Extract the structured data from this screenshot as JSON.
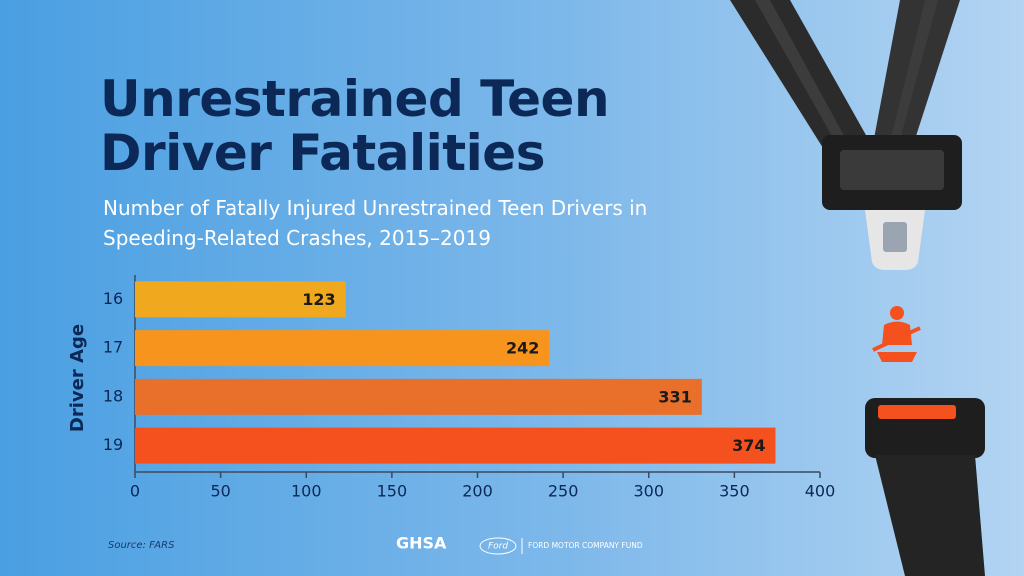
{
  "chart_data": {
    "type": "bar",
    "orientation": "horizontal",
    "title": "Unrestrained Teen Driver Fatalities",
    "subtitle": "Number of Fatally Injured Unrestrained Teen Drivers in Speeding-Related Crashes, 2015–2019",
    "y_label": "Driver Age",
    "categories": [
      "16",
      "17",
      "18",
      "19"
    ],
    "values": [
      123,
      242,
      331,
      374
    ],
    "colors": [
      "#f0a81e",
      "#f7941d",
      "#e8702a",
      "#f4511e"
    ],
    "xlim": [
      0,
      400
    ],
    "xticks": [
      0,
      50,
      100,
      150,
      200,
      250,
      300,
      350,
      400
    ],
    "source": "Source: FARS",
    "logos": [
      "GHSA",
      "Ford",
      "FORD MOTOR COMPANY FUND"
    ]
  }
}
